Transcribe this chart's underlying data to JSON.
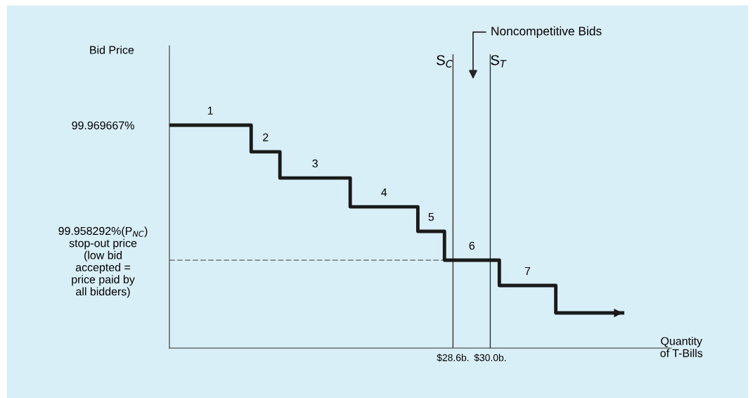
{
  "chart_data": {
    "type": "step",
    "xlabel": "Quantity\nof T-Bills",
    "ylabel": "Bid Price",
    "series": [
      {
        "color": "#1a1a1a",
        "x": [
          17.95,
          21.02,
          22.1,
          24.74,
          27.28,
          28.28,
          30.34,
          32.46,
          34.97
        ],
        "values": [
          99.969667,
          99.96742,
          99.96522,
          99.96279,
          99.96072,
          99.958292,
          99.95616,
          99.95385,
          99.95385
        ]
      }
    ],
    "xlim": [
      17.95,
      36.8
    ],
    "ylim": [
      99.95089,
      99.97636
    ],
    "xticks": [
      {
        "value": 28.6,
        "label": "$28.6b."
      },
      {
        "value": 30.0,
        "label": "$30.0b."
      }
    ],
    "yticks": [
      {
        "value": 99.969667,
        "label": "99.969667%"
      },
      {
        "value": 99.958292,
        "label": "99.958292%(P$_{NC}$)\nstop-out price\n(low bid\naccepted =\nprice paid by\nall bidders)"
      }
    ],
    "ref_lines": [
      {
        "axis": "y",
        "value": 99.958292,
        "color": "#8a9499",
        "line_style": "dashed"
      },
      {
        "axis": "x",
        "value": 28.6,
        "label": "S$_{C}$",
        "color": "#333333"
      },
      {
        "axis": "x",
        "value": 30.0,
        "label": "S$_{T}$",
        "color": "#333333"
      }
    ],
    "annotations": [
      "1",
      "2",
      "3",
      "4",
      "5",
      "6",
      "7",
      "Noncompetitive Bids"
    ],
    "grid": false,
    "marker": "none",
    "line_style": "solid"
  }
}
